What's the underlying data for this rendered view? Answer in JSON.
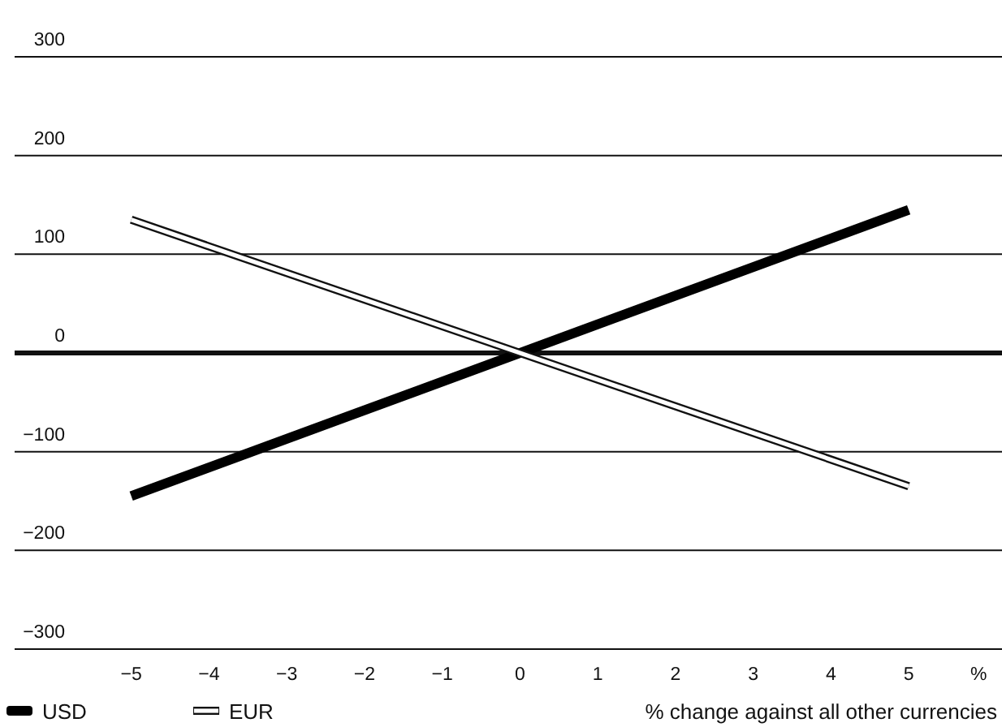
{
  "chart_data": {
    "type": "line",
    "x": [
      -5,
      5
    ],
    "xlabel": "% change against all other currencies",
    "series": [
      {
        "name": "USD",
        "color": "#000000",
        "values": [
          -145,
          145
        ]
      },
      {
        "name": "EUR",
        "color": "#ffffff",
        "values": [
          135,
          -135
        ]
      }
    ],
    "xlim": [
      -6.5,
      6.2
    ],
    "xticks": [
      -5,
      -4,
      -3,
      -2,
      -1,
      0,
      1,
      2,
      3,
      4,
      5,
      {
        "value": 5.9,
        "label": "%"
      }
    ],
    "ylim": [
      -300,
      300
    ],
    "yticks": [
      -300,
      -200,
      -100,
      0,
      100,
      200,
      300
    ],
    "grid": "y",
    "legend": "bottom",
    "marker": "none",
    "line_style": "solid"
  }
}
